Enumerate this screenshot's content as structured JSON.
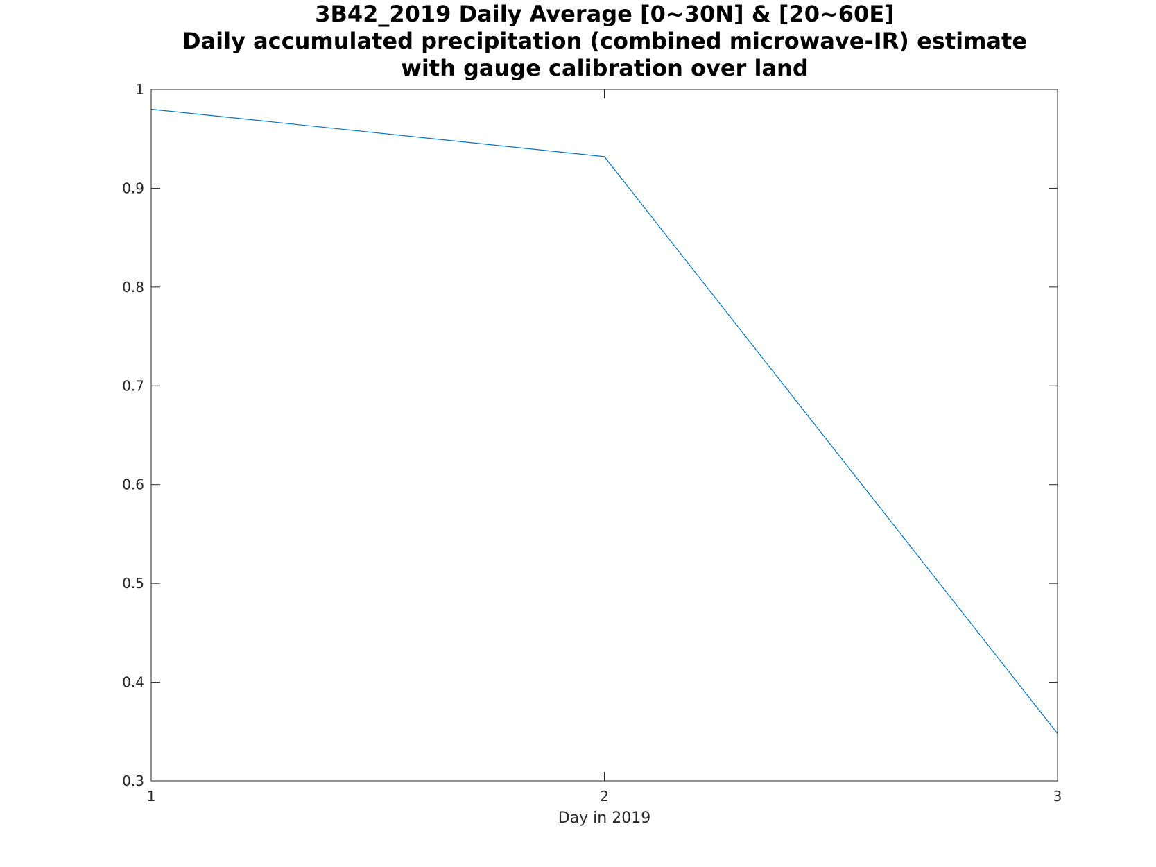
{
  "chart_data": {
    "type": "line",
    "title": [
      "3B42_2019 Daily Average [0~30N] & [20~60E]",
      "Daily accumulated precipitation (combined microwave-IR) estimate",
      "with gauge calibration over land"
    ],
    "xlabel": "Day in 2019",
    "ylabel": "",
    "xlim": [
      1,
      3
    ],
    "ylim": [
      0.3,
      1
    ],
    "xticks": [
      1,
      2,
      3
    ],
    "xtick_labels": [
      "1",
      "2",
      "3"
    ],
    "yticks": [
      0.3,
      0.4,
      0.5,
      0.6,
      0.7,
      0.8,
      0.9,
      1
    ],
    "ytick_labels": [
      "0.3",
      "0.4",
      "0.5",
      "0.6",
      "0.7",
      "0.8",
      "0.9",
      "1"
    ],
    "grid": false,
    "legend": false,
    "series": [
      {
        "color": "#0072BD",
        "x": [
          1,
          2,
          3
        ],
        "y": [
          0.98,
          0.932,
          0.348
        ]
      }
    ]
  }
}
